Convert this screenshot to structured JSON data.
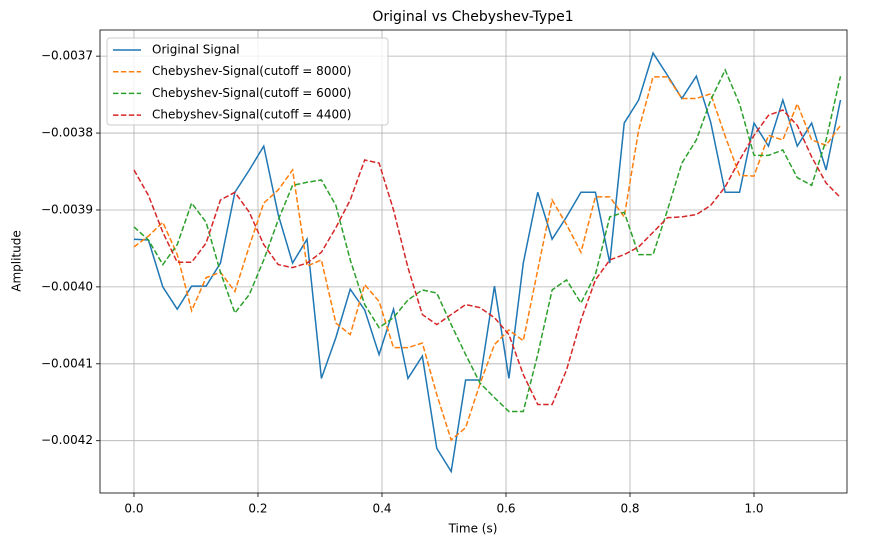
{
  "chart_data": {
    "type": "line",
    "title": "Original vs Chebyshev-Type1",
    "x_label": "Time (s)",
    "y_label": "Amplitude",
    "x": [
      0,
      0.0233,
      0.0465,
      0.0698,
      0.093,
      0.1163,
      0.1395,
      0.1628,
      0.186,
      0.2093,
      0.2326,
      0.2558,
      0.2791,
      0.3023,
      0.3256,
      0.3488,
      0.3721,
      0.3953,
      0.4186,
      0.4419,
      0.4651,
      0.4884,
      0.5116,
      0.5349,
      0.5581,
      0.5814,
      0.6047,
      0.6279,
      0.6512,
      0.6744,
      0.6977,
      0.7209,
      0.7442,
      0.7674,
      0.7907,
      0.814,
      0.8372,
      0.8605,
      0.8837,
      0.907,
      0.9302,
      0.9535,
      0.9767,
      1.0,
      1.0233,
      1.0465,
      1.0698,
      1.093,
      1.1163,
      1.1395
    ],
    "series": [
      {
        "name": "Original Signal",
        "color": "#1f77b4",
        "dashed": false,
        "values": [
          -0.003938,
          -0.003939,
          -0.004,
          -0.004029,
          -0.003999,
          -0.003999,
          -0.003969,
          -0.003877,
          -0.003848,
          -0.003817,
          -0.003906,
          -0.003969,
          -0.003938,
          -0.004119,
          -0.004066,
          -0.004003,
          -0.00403,
          -0.004088,
          -0.004029,
          -0.004119,
          -0.00409,
          -0.00421,
          -0.00424,
          -0.004121,
          -0.004121,
          -0.003999,
          -0.004119,
          -0.003969,
          -0.003877,
          -0.003938,
          -0.003909,
          -0.003877,
          -0.003877,
          -0.003969,
          -0.003787,
          -0.003757,
          -0.003696,
          -0.003725,
          -0.003755,
          -0.003726,
          -0.003786,
          -0.003877,
          -0.003877,
          -0.003787,
          -0.003817,
          -0.003757,
          -0.003817,
          -0.003787,
          -0.003848,
          -0.003757
        ]
      },
      {
        "name": "Chebyshev-Signal(cutoff = 8000)",
        "color": "#ff7f0e",
        "dashed": true,
        "values": [
          -0.003948,
          -0.003934,
          -0.003916,
          -0.003958,
          -0.004031,
          -0.003988,
          -0.003981,
          -0.004006,
          -0.003947,
          -0.003891,
          -0.003874,
          -0.003848,
          -0.003973,
          -0.003965,
          -0.004047,
          -0.004062,
          -0.003997,
          -0.004019,
          -0.004079,
          -0.004079,
          -0.004073,
          -0.00414,
          -0.004199,
          -0.004183,
          -0.004126,
          -0.004075,
          -0.004056,
          -0.00407,
          -0.003978,
          -0.003887,
          -0.003919,
          -0.003955,
          -0.003883,
          -0.003883,
          -0.003909,
          -0.003796,
          -0.003727,
          -0.003727,
          -0.003755,
          -0.003755,
          -0.003749,
          -0.003804,
          -0.003855,
          -0.003856,
          -0.003803,
          -0.003809,
          -0.003762,
          -0.003809,
          -0.003816,
          -0.00379
        ]
      },
      {
        "name": "Chebyshev-Signal(cutoff = 6000)",
        "color": "#2ca02c",
        "dashed": true,
        "values": [
          -0.003922,
          -0.003939,
          -0.003971,
          -0.003945,
          -0.003891,
          -0.003916,
          -0.003981,
          -0.004034,
          -0.00401,
          -0.003965,
          -0.003913,
          -0.003868,
          -0.003864,
          -0.003861,
          -0.003894,
          -0.003965,
          -0.004023,
          -0.004053,
          -0.00404,
          -0.004017,
          -0.004004,
          -0.004008,
          -0.004049,
          -0.004088,
          -0.004125,
          -0.004144,
          -0.004162,
          -0.004162,
          -0.004088,
          -0.004004,
          -0.003991,
          -0.004021,
          -0.003984,
          -0.003909,
          -0.003903,
          -0.003958,
          -0.003958,
          -0.0039,
          -0.003839,
          -0.003809,
          -0.003757,
          -0.003718,
          -0.003762,
          -0.003829,
          -0.003829,
          -0.003822,
          -0.003858,
          -0.003868,
          -0.003809,
          -0.003726
        ]
      },
      {
        "name": "Chebyshev-Signal(cutoff = 4400)",
        "color": "#d62728",
        "dashed": true,
        "values": [
          -0.003848,
          -0.003881,
          -0.003929,
          -0.003968,
          -0.003968,
          -0.003943,
          -0.003887,
          -0.003877,
          -0.003903,
          -0.003945,
          -0.003971,
          -0.003975,
          -0.003969,
          -0.003955,
          -0.003923,
          -0.003887,
          -0.003835,
          -0.003839,
          -0.0039,
          -0.003975,
          -0.004036,
          -0.004049,
          -0.004036,
          -0.004023,
          -0.004027,
          -0.00404,
          -0.004062,
          -0.004114,
          -0.004153,
          -0.004153,
          -0.004108,
          -0.004043,
          -0.003991,
          -0.003965,
          -0.003958,
          -0.003948,
          -0.003929,
          -0.00391,
          -0.003909,
          -0.003906,
          -0.003894,
          -0.00387,
          -0.003835,
          -0.003803,
          -0.003777,
          -0.00377,
          -0.00379,
          -0.003831,
          -0.003865,
          -0.003884
        ]
      }
    ],
    "xlim": [
      -0.0548,
      1.15
    ],
    "ylim": [
      -0.004268,
      -0.003666
    ],
    "xticks": [
      {
        "value": 0,
        "label": "0.0"
      },
      {
        "value": 0.2,
        "label": "0.2"
      },
      {
        "value": 0.4,
        "label": "0.4"
      },
      {
        "value": 0.6,
        "label": "0.6"
      },
      {
        "value": 0.8,
        "label": "0.8"
      },
      {
        "value": 1,
        "label": "1.0"
      }
    ],
    "yticks": [
      {
        "value": -0.0037,
        "label": "−0.0037"
      },
      {
        "value": -0.0038,
        "label": "−0.0038"
      },
      {
        "value": -0.0039,
        "label": "−0.0039"
      },
      {
        "value": -0.004,
        "label": "−0.0040"
      },
      {
        "value": -0.0041,
        "label": "−0.0041"
      },
      {
        "value": -0.0042,
        "label": "−0.0042"
      }
    ],
    "grid": true,
    "legend": "upper-left"
  }
}
